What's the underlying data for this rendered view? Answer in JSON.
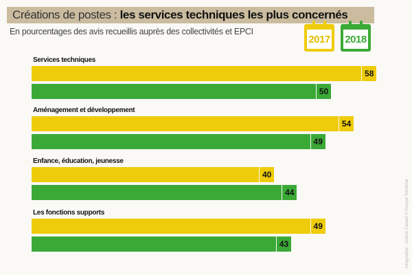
{
  "title_light": "Créations de postes : ",
  "title_bold": "les services techniques les plus concernés",
  "subtitle": "En pourcentages des avis recueillis auprès des collectivités et EPCI",
  "credit": "Infographie : Justine Cabard © Groupe Territorial",
  "colors": {
    "2017": "#efcc0b",
    "2018": "#3ba936",
    "title_bg": "#cbbc9f"
  },
  "chart_data": {
    "type": "bar",
    "orientation": "horizontal",
    "title": "Créations de postes : les services techniques les plus concernés",
    "subtitle": "En pourcentages des avis recueillis auprès des collectivités et EPCI",
    "categories": [
      "Services techniques",
      "Aménagement et développement",
      "Enfance, éducation, jeunesse",
      "Les fonctions supports"
    ],
    "series": [
      {
        "name": "2017",
        "values": [
          58,
          54,
          40,
          49
        ]
      },
      {
        "name": "2018",
        "values": [
          50,
          49,
          44,
          43
        ]
      }
    ],
    "legend": "top-right",
    "grid": false,
    "unit": "%"
  }
}
